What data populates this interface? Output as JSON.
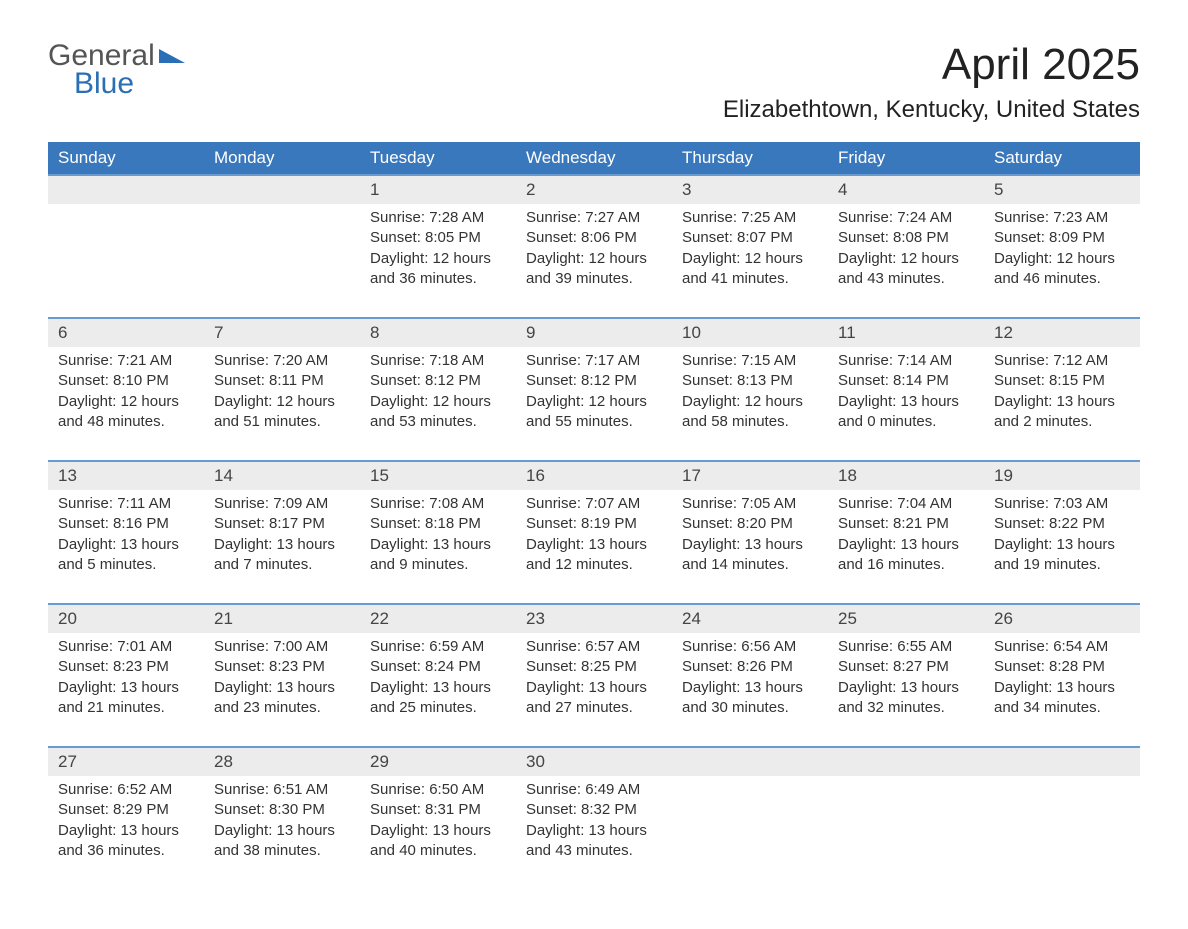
{
  "logo": {
    "word1": "General",
    "word2": "Blue"
  },
  "header": {
    "month_title": "April 2025",
    "location": "Elizabethtown, Kentucky, United States"
  },
  "colors": {
    "header_bg": "#3a78bd",
    "header_text": "#ffffff",
    "daynum_bg": "#ececec",
    "week_border": "#6a9bd0",
    "body_text": "#333333",
    "logo_blue": "#2a6fb5",
    "logo_gray": "#555555",
    "page_bg": "#ffffff"
  },
  "fonts": {
    "family": "Arial",
    "month_title_size": 44,
    "location_size": 24,
    "weekday_size": 17,
    "daynum_size": 17,
    "body_size": 15
  },
  "weekdays": [
    "Sunday",
    "Monday",
    "Tuesday",
    "Wednesday",
    "Thursday",
    "Friday",
    "Saturday"
  ],
  "weeks": [
    [
      {
        "day": "",
        "lines": []
      },
      {
        "day": "",
        "lines": []
      },
      {
        "day": "1",
        "lines": [
          "Sunrise: 7:28 AM",
          "Sunset: 8:05 PM",
          "Daylight: 12 hours",
          "and 36 minutes."
        ]
      },
      {
        "day": "2",
        "lines": [
          "Sunrise: 7:27 AM",
          "Sunset: 8:06 PM",
          "Daylight: 12 hours",
          "and 39 minutes."
        ]
      },
      {
        "day": "3",
        "lines": [
          "Sunrise: 7:25 AM",
          "Sunset: 8:07 PM",
          "Daylight: 12 hours",
          "and 41 minutes."
        ]
      },
      {
        "day": "4",
        "lines": [
          "Sunrise: 7:24 AM",
          "Sunset: 8:08 PM",
          "Daylight: 12 hours",
          "and 43 minutes."
        ]
      },
      {
        "day": "5",
        "lines": [
          "Sunrise: 7:23 AM",
          "Sunset: 8:09 PM",
          "Daylight: 12 hours",
          "and 46 minutes."
        ]
      }
    ],
    [
      {
        "day": "6",
        "lines": [
          "Sunrise: 7:21 AM",
          "Sunset: 8:10 PM",
          "Daylight: 12 hours",
          "and 48 minutes."
        ]
      },
      {
        "day": "7",
        "lines": [
          "Sunrise: 7:20 AM",
          "Sunset: 8:11 PM",
          "Daylight: 12 hours",
          "and 51 minutes."
        ]
      },
      {
        "day": "8",
        "lines": [
          "Sunrise: 7:18 AM",
          "Sunset: 8:12 PM",
          "Daylight: 12 hours",
          "and 53 minutes."
        ]
      },
      {
        "day": "9",
        "lines": [
          "Sunrise: 7:17 AM",
          "Sunset: 8:12 PM",
          "Daylight: 12 hours",
          "and 55 minutes."
        ]
      },
      {
        "day": "10",
        "lines": [
          "Sunrise: 7:15 AM",
          "Sunset: 8:13 PM",
          "Daylight: 12 hours",
          "and 58 minutes."
        ]
      },
      {
        "day": "11",
        "lines": [
          "Sunrise: 7:14 AM",
          "Sunset: 8:14 PM",
          "Daylight: 13 hours",
          "and 0 minutes."
        ]
      },
      {
        "day": "12",
        "lines": [
          "Sunrise: 7:12 AM",
          "Sunset: 8:15 PM",
          "Daylight: 13 hours",
          "and 2 minutes."
        ]
      }
    ],
    [
      {
        "day": "13",
        "lines": [
          "Sunrise: 7:11 AM",
          "Sunset: 8:16 PM",
          "Daylight: 13 hours",
          "and 5 minutes."
        ]
      },
      {
        "day": "14",
        "lines": [
          "Sunrise: 7:09 AM",
          "Sunset: 8:17 PM",
          "Daylight: 13 hours",
          "and 7 minutes."
        ]
      },
      {
        "day": "15",
        "lines": [
          "Sunrise: 7:08 AM",
          "Sunset: 8:18 PM",
          "Daylight: 13 hours",
          "and 9 minutes."
        ]
      },
      {
        "day": "16",
        "lines": [
          "Sunrise: 7:07 AM",
          "Sunset: 8:19 PM",
          "Daylight: 13 hours",
          "and 12 minutes."
        ]
      },
      {
        "day": "17",
        "lines": [
          "Sunrise: 7:05 AM",
          "Sunset: 8:20 PM",
          "Daylight: 13 hours",
          "and 14 minutes."
        ]
      },
      {
        "day": "18",
        "lines": [
          "Sunrise: 7:04 AM",
          "Sunset: 8:21 PM",
          "Daylight: 13 hours",
          "and 16 minutes."
        ]
      },
      {
        "day": "19",
        "lines": [
          "Sunrise: 7:03 AM",
          "Sunset: 8:22 PM",
          "Daylight: 13 hours",
          "and 19 minutes."
        ]
      }
    ],
    [
      {
        "day": "20",
        "lines": [
          "Sunrise: 7:01 AM",
          "Sunset: 8:23 PM",
          "Daylight: 13 hours",
          "and 21 minutes."
        ]
      },
      {
        "day": "21",
        "lines": [
          "Sunrise: 7:00 AM",
          "Sunset: 8:23 PM",
          "Daylight: 13 hours",
          "and 23 minutes."
        ]
      },
      {
        "day": "22",
        "lines": [
          "Sunrise: 6:59 AM",
          "Sunset: 8:24 PM",
          "Daylight: 13 hours",
          "and 25 minutes."
        ]
      },
      {
        "day": "23",
        "lines": [
          "Sunrise: 6:57 AM",
          "Sunset: 8:25 PM",
          "Daylight: 13 hours",
          "and 27 minutes."
        ]
      },
      {
        "day": "24",
        "lines": [
          "Sunrise: 6:56 AM",
          "Sunset: 8:26 PM",
          "Daylight: 13 hours",
          "and 30 minutes."
        ]
      },
      {
        "day": "25",
        "lines": [
          "Sunrise: 6:55 AM",
          "Sunset: 8:27 PM",
          "Daylight: 13 hours",
          "and 32 minutes."
        ]
      },
      {
        "day": "26",
        "lines": [
          "Sunrise: 6:54 AM",
          "Sunset: 8:28 PM",
          "Daylight: 13 hours",
          "and 34 minutes."
        ]
      }
    ],
    [
      {
        "day": "27",
        "lines": [
          "Sunrise: 6:52 AM",
          "Sunset: 8:29 PM",
          "Daylight: 13 hours",
          "and 36 minutes."
        ]
      },
      {
        "day": "28",
        "lines": [
          "Sunrise: 6:51 AM",
          "Sunset: 8:30 PM",
          "Daylight: 13 hours",
          "and 38 minutes."
        ]
      },
      {
        "day": "29",
        "lines": [
          "Sunrise: 6:50 AM",
          "Sunset: 8:31 PM",
          "Daylight: 13 hours",
          "and 40 minutes."
        ]
      },
      {
        "day": "30",
        "lines": [
          "Sunrise: 6:49 AM",
          "Sunset: 8:32 PM",
          "Daylight: 13 hours",
          "and 43 minutes."
        ]
      },
      {
        "day": "",
        "lines": []
      },
      {
        "day": "",
        "lines": []
      },
      {
        "day": "",
        "lines": []
      }
    ]
  ]
}
